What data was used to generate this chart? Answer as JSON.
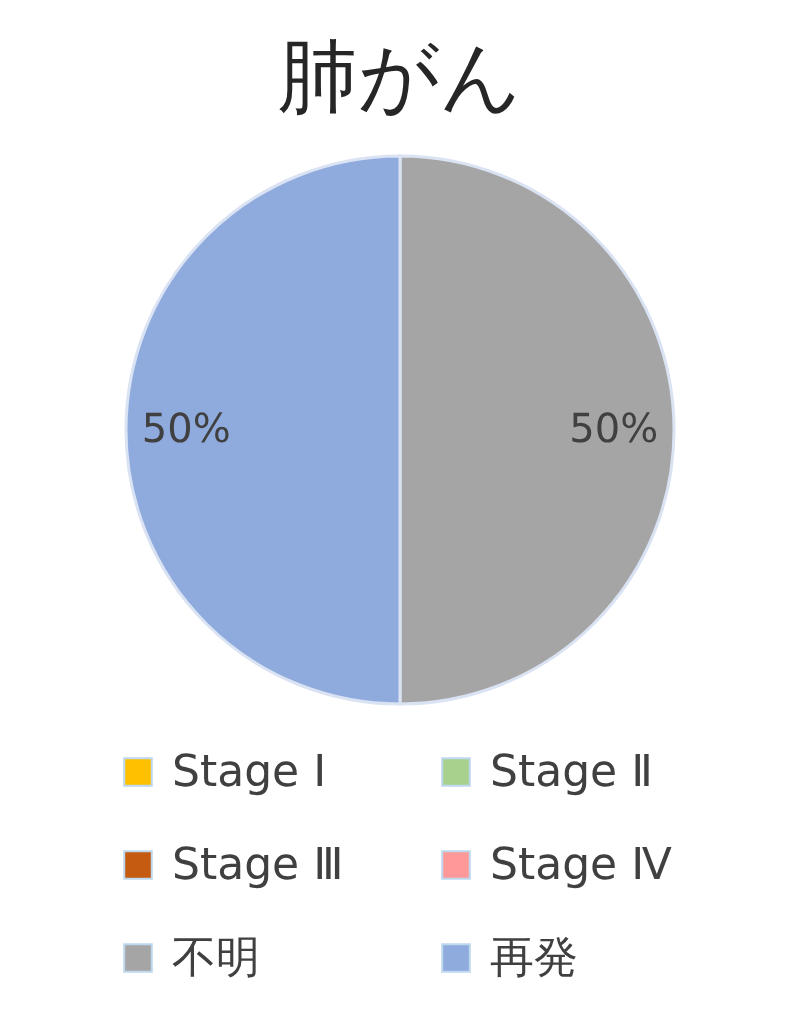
{
  "chart_data": {
    "type": "pie",
    "title": "肺がん",
    "categories": [
      "Stage Ⅰ",
      "Stage Ⅱ",
      "Stage Ⅲ",
      "Stage Ⅳ",
      "不明",
      "再発"
    ],
    "values": [
      0,
      0,
      0,
      0,
      50,
      50
    ],
    "colors": [
      "#ffc000",
      "#a9d18e",
      "#c55a11",
      "#ff9999",
      "#a5a5a5",
      "#8faadc"
    ],
    "value_labels": [
      null,
      null,
      null,
      null,
      "50%",
      "50%"
    ],
    "legend": "bottom"
  }
}
